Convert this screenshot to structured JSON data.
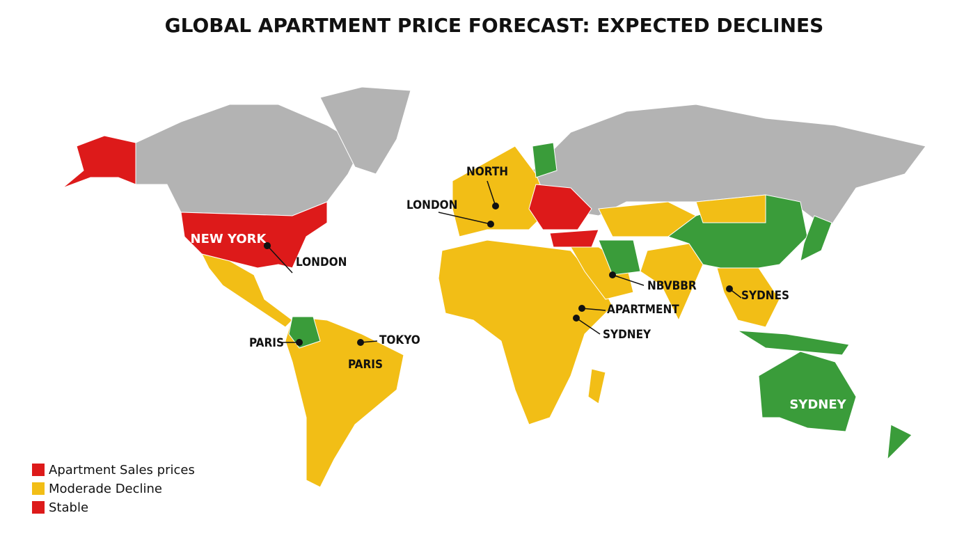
{
  "title": "GLOBAL APARTMENT PRICE FORECAST: EXPECTED DECLINES",
  "labels": [
    {
      "text": "NORTH"
    },
    {
      "text": "LONDON"
    },
    {
      "text": "NEW YORK"
    },
    {
      "text": "LONDON"
    },
    {
      "text": "NBVBBR"
    },
    {
      "text": "SYDNES"
    },
    {
      "text": "APARTMENT"
    },
    {
      "text": "SYDNEY"
    },
    {
      "text": "PARIS"
    },
    {
      "text": "TOKYO"
    },
    {
      "text": "PARIS"
    },
    {
      "text": "SYDNEY"
    }
  ],
  "legend": [
    {
      "label": "Apartment Sales prices",
      "color": "#dd1a1a"
    },
    {
      "label": "Moderade Decline",
      "color": "#f2be16"
    },
    {
      "label": "Stable",
      "color": "#dd1a1a"
    }
  ]
}
